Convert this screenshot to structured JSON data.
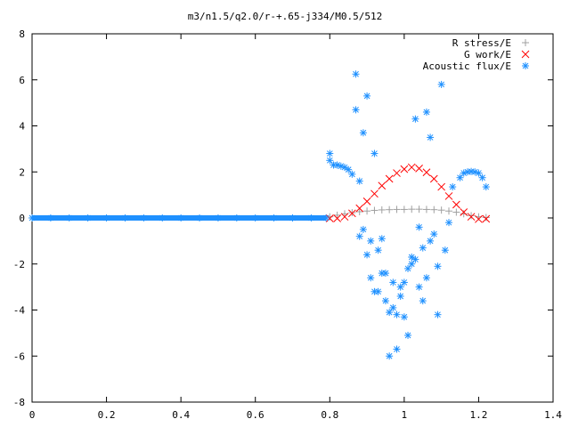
{
  "chart_data": {
    "type": "scatter",
    "title": "m3/n1.5/q2.0/r-+.65-j334/M0.5/512",
    "xlabel": "",
    "ylabel": "",
    "xlim": [
      0,
      1.4
    ],
    "ylim": [
      -8,
      8
    ],
    "xticks": [
      0,
      0.2,
      0.4,
      0.6,
      0.8,
      1,
      1.2,
      1.4
    ],
    "xtick_labels": [
      "0",
      "0.2",
      "0.4",
      "0.6",
      "0.8",
      "1",
      "1.2",
      "1.4"
    ],
    "yticks": [
      -8,
      -6,
      -4,
      -2,
      0,
      2,
      4,
      6,
      8
    ],
    "ytick_labels": [
      "-8",
      "-6",
      "-4",
      "-2",
      "0",
      "2",
      "4",
      "6",
      "8"
    ],
    "grid": false,
    "legend_position": "top-right",
    "series": [
      {
        "name": "R stress/E",
        "marker": "plus",
        "color": "#a0a0a0",
        "x": [
          0.8,
          0.82,
          0.84,
          0.86,
          0.88,
          0.9,
          0.92,
          0.94,
          0.96,
          0.98,
          1.0,
          1.02,
          1.04,
          1.06,
          1.08,
          1.1,
          1.12,
          1.14,
          1.16,
          1.18,
          1.2,
          1.22
        ],
        "y": [
          0.05,
          0.12,
          0.18,
          0.23,
          0.27,
          0.3,
          0.33,
          0.35,
          0.36,
          0.37,
          0.37,
          0.38,
          0.38,
          0.37,
          0.36,
          0.34,
          0.3,
          0.25,
          0.18,
          0.1,
          0.05,
          0.02
        ]
      },
      {
        "name": "G work/E",
        "marker": "cross",
        "color": "#ff0000",
        "x": [
          0.8,
          0.82,
          0.84,
          0.86,
          0.88,
          0.9,
          0.92,
          0.94,
          0.96,
          0.98,
          1.0,
          1.02,
          1.04,
          1.06,
          1.08,
          1.1,
          1.12,
          1.14,
          1.16,
          1.18,
          1.2,
          1.22
        ],
        "y": [
          -0.02,
          -0.02,
          0.05,
          0.2,
          0.42,
          0.72,
          1.05,
          1.4,
          1.7,
          1.95,
          2.12,
          2.2,
          2.15,
          1.98,
          1.7,
          1.35,
          0.95,
          0.58,
          0.25,
          0.05,
          -0.05,
          -0.04
        ]
      },
      {
        "name": "Acoustic flux/E",
        "marker": "star",
        "color": "#1e90ff",
        "x": [
          0.0,
          0.05,
          0.1,
          0.15,
          0.2,
          0.25,
          0.3,
          0.35,
          0.4,
          0.45,
          0.5,
          0.55,
          0.6,
          0.65,
          0.7,
          0.75,
          0.79,
          0.8,
          0.8,
          0.81,
          0.82,
          0.83,
          0.84,
          0.85,
          0.86,
          0.87,
          0.87,
          0.88,
          0.88,
          0.89,
          0.9,
          0.9,
          0.91,
          0.92,
          0.93,
          0.94,
          0.95,
          0.96,
          0.97,
          0.98,
          0.99,
          1.0,
          1.01,
          1.02,
          1.03,
          1.04,
          1.05,
          1.06,
          1.07,
          1.08,
          1.09,
          1.1,
          1.11,
          1.12,
          0.89,
          0.91,
          0.93,
          0.95,
          0.97,
          0.99,
          1.01,
          1.03,
          1.05,
          1.07,
          1.09,
          0.92,
          0.94,
          0.96,
          0.98,
          1.0,
          1.02,
          1.04,
          1.06,
          1.13,
          1.15,
          1.16,
          1.17,
          1.18,
          1.19,
          1.2,
          1.21,
          1.22
        ],
        "y": [
          0,
          0,
          0,
          0,
          0,
          0,
          0,
          0,
          0,
          0,
          0,
          0,
          0,
          0,
          0,
          0,
          0,
          2.8,
          2.5,
          2.3,
          2.3,
          2.25,
          2.2,
          2.1,
          1.9,
          6.25,
          4.7,
          1.6,
          -0.8,
          3.7,
          5.3,
          -1.6,
          -1.0,
          2.8,
          -3.2,
          -0.9,
          -2.4,
          -4.1,
          -3.9,
          -4.2,
          -3.0,
          -4.3,
          -5.1,
          -2.0,
          4.3,
          -3.0,
          -1.3,
          -2.6,
          3.5,
          -0.7,
          -2.1,
          5.8,
          -1.4,
          -0.2,
          -0.5,
          -2.6,
          -1.4,
          -3.6,
          -2.8,
          -3.4,
          -2.2,
          -1.8,
          -3.6,
          -1.0,
          -4.2,
          -3.2,
          -2.4,
          -6.0,
          -5.7,
          -2.8,
          -1.7,
          -0.4,
          4.6,
          1.35,
          1.75,
          1.95,
          2.0,
          2.02,
          2.0,
          1.95,
          1.75,
          1.35
        ]
      }
    ]
  }
}
